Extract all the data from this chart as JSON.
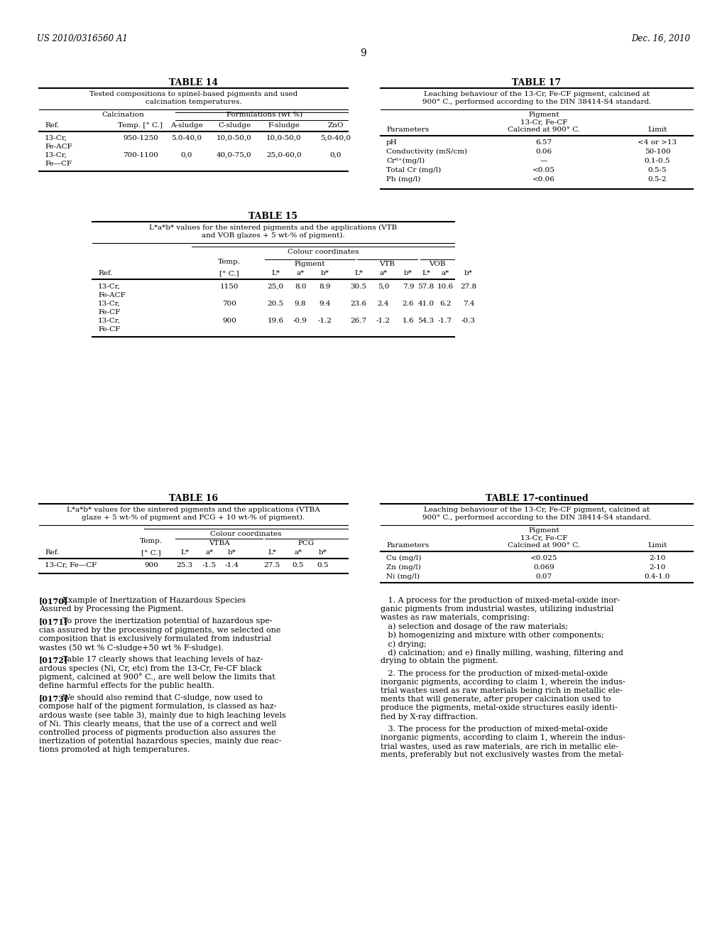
{
  "bg": "#ffffff",
  "header_left": "US 2010/0316560 A1",
  "header_right": "Dec. 16, 2010",
  "page_number": "9",
  "t14_title": "TABLE 14",
  "t14_cap1": "Tested compositions to spinel-based pigments and used",
  "t14_cap2": "calcination temperatures.",
  "t14_grp1": "Calcination",
  "t14_grp2": "Formulations (wt %)",
  "t14_h": [
    "Ref.",
    "Temp. [° C.]",
    "A-sludge",
    "C-sludge",
    "F-sludge",
    "ZnO"
  ],
  "t14_rows": [
    [
      "13-Cr,",
      "Fe-ACF",
      "950-1250",
      "5.0-40,0",
      "10,0-50,0",
      "10,0-50,0",
      "5,0-40,0"
    ],
    [
      "13-Cr,",
      "Fe—CF",
      "700-1100",
      "0,0",
      "40,0-75,0",
      "25,0-60,0",
      "0,0"
    ]
  ],
  "t15_title": "TABLE 15",
  "t15_cap1": "L*a*b* values for the sintered pigments and the applications (VTB",
  "t15_cap2": "and VOB glazes + 5 wt-% of pigment).",
  "t15_grp": "Colour coordinates",
  "t15_subs": [
    "Pigment",
    "VTB",
    "VOB"
  ],
  "t15_rows": [
    [
      "13-Cr,",
      "Fe-ACF",
      "1150",
      "25,0",
      "8.0",
      "8.9",
      "30.5",
      "5,0",
      "7.9",
      "57.8",
      "10.6",
      "27.8"
    ],
    [
      "13-Cr,",
      "Fe-CF",
      "700",
      "20.5",
      "9.8",
      "9.4",
      "23.6",
      "2.4",
      "2.6",
      "41.0",
      "6.2",
      "7.4"
    ],
    [
      "13-Cr,",
      "Fe-CF",
      "900",
      "19.6",
      "-0.9",
      "-1.2",
      "26.7",
      "-1.2",
      "1.6",
      "54.3",
      "-1.7",
      "-0.3"
    ]
  ],
  "t16_title": "TABLE 16",
  "t16_cap1": "L*a*b* values for the sintered pigments and the applications (VTBA",
  "t16_cap2": "glaze + 5 wt-% of pigment and PCG + 10 wt-% of pigment).",
  "t16_grp": "Colour coordinates",
  "t16_subs": [
    "VTBA",
    "PCG"
  ],
  "t16_rows": [
    [
      "13-Cr, Fe—CF",
      "900",
      "25.3",
      "-1.5",
      "-1.4",
      "27.5",
      "0.5",
      "0.5"
    ]
  ],
  "t17_title": "TABLE 17",
  "t17_cap1": "Leaching behaviour of the 13-Cr, Fe-CF pigment, calcined at",
  "t17_cap2": "900° C., performed according to the DIN 38414-S4 standard.",
  "t17_pig1": "Pigment",
  "t17_pig2": "13-Cr, Fe-CF",
  "t17_pig3": "Calcined at 900° C.",
  "t17_h": [
    "Parameters",
    "Limit"
  ],
  "t17_rows": [
    [
      "pH",
      "6.57",
      "<4 or >13"
    ],
    [
      "Conductivity (mS/cm)",
      "0.06",
      "50-100"
    ],
    [
      "Cr⁶⁺(mg/l)",
      "—",
      "0.1-0.5"
    ],
    [
      "Total Cr (mg/l)",
      "<0.05",
      "0.5-5"
    ],
    [
      "Pb (mg/l)",
      "<0.06",
      "0.5-2"
    ]
  ],
  "t17c_title": "TABLE 17-continued",
  "t17c_cap1": "Leaching behaviour of the 13-Cr, Fe-CF pigment, calcined at",
  "t17c_cap2": "900° C., performed according to the DIN 38414-S4 standard.",
  "t17c_pig1": "Pigment",
  "t17c_pig2": "13-Cr, Fe-CF",
  "t17c_pig3": "Calcined at 900° C.",
  "t17c_rows": [
    [
      "Cu (mg/l)",
      "<0.025",
      "2-10"
    ],
    [
      "Zn (mg/l)",
      "0.069",
      "2-10"
    ],
    [
      "Ni (mg/l)",
      "0.07",
      "0.4-1.0"
    ]
  ],
  "p0170_tag": "[0170]",
  "p0170_txt": "   Example of Inertization of Hazardous Species\nAssured by Processing the Pigment.",
  "p0171_tag": "[0171]",
  "p0171_txt": "   To prove the inertization potential of hazardous spe-\ncias assured by the processing of pigments, we selected one\ncomposition that is exclusively formulated from industrial\nwastes (50 wt % C-sludge+50 wt % F-sludge).",
  "p0172_tag": "[0172]",
  "p0172_txt": "   Table 17 clearly shows that leaching levels of haz-\nardous species (Ni, Cr, etc) from the 13-Cr, Fe-CF black\npigment, calcined at 900° C., are well below the limits that\ndefine harmful effects for the public health.",
  "p0173_tag": "[0173]",
  "p0173_txt": "   We should also remind that C-sludge, now used to\ncompose half of the pigment formulation, is classed as haz-\nardous waste (see table 3), mainly due to high leaching levels\nof Ni. This clearly means, that the use of a correct and well\ncontrolled process of pigments production also assures the\ninertization of potential hazardous species, mainly due reac-\ntions promoted at high temperatures.",
  "claim1": "   1. A process for the production of mixed-metal-oxide inor-\nganic pigments from industrial wastes, utilizing industrial\nwastes as raw materials, comprising:\n   a) selection and dosage of the raw materials;\n   b) homogenizing and mixture with other components;\n   c) drying;\n   d) calcination; and e) finally milling, washing, filtering and\ndrying to obtain the pigment.",
  "claim2": "   2. The process for the production of mixed-metal-oxide\ninorganic pigments, according to claim 1, wherein the indus-\ntrial wastes used as raw materials being rich in metallic ele-\nments that will generate, after proper calcination used to\nproduce the pigments, metal-oxide structures easily identi-\nfied by X-ray diffraction.",
  "claim3": "   3. The process for the production of mixed-metal-oxide\ninorganic pigments, according to claim 1, wherein the indus-\ntrial wastes, used as raw materials, are rich in metallic ele-\nments, preferably but not exclusively wastes from the metal-"
}
